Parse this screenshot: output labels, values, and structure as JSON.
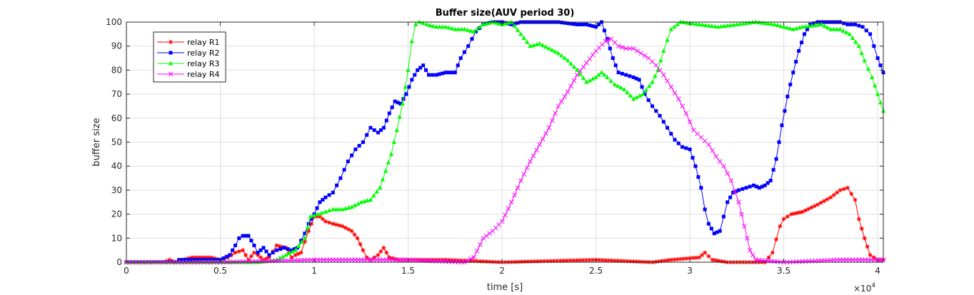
{
  "chart_data": {
    "type": "line",
    "title": "Buffer size(AUV period 30)",
    "xlabel": "time [s]",
    "ylabel": "buffer size",
    "x_exponent_label": "×10",
    "x_exponent_power": "4",
    "xlim": [
      0,
      40300
    ],
    "ylim": [
      0,
      100
    ],
    "xticks": [
      0,
      5000,
      10000,
      15000,
      20000,
      25000,
      30000,
      35000,
      40000
    ],
    "xtick_labels": [
      "0",
      "0.5",
      "1",
      "1.5",
      "2",
      "2.5",
      "3",
      "3.5",
      "4"
    ],
    "yticks": [
      0,
      10,
      20,
      30,
      40,
      50,
      60,
      70,
      80,
      90,
      100
    ],
    "ytick_labels": [
      "0",
      "10",
      "20",
      "30",
      "40",
      "50",
      "60",
      "70",
      "80",
      "90",
      "100"
    ],
    "grid": true,
    "legend_position": "top-left",
    "series": [
      {
        "name": "relay R1",
        "color": "#ff0000",
        "marker": "asterisk",
        "points": [
          [
            0,
            0
          ],
          [
            2000,
            0
          ],
          [
            2300,
            1
          ],
          [
            2600,
            0
          ],
          [
            3000,
            1
          ],
          [
            3500,
            2
          ],
          [
            4500,
            2
          ],
          [
            5000,
            1
          ],
          [
            5400,
            2
          ],
          [
            5800,
            4
          ],
          [
            6200,
            5
          ],
          [
            6500,
            1
          ],
          [
            6800,
            4
          ],
          [
            7000,
            3
          ],
          [
            7300,
            1
          ],
          [
            7600,
            2
          ],
          [
            8000,
            7
          ],
          [
            8500,
            6
          ],
          [
            8800,
            2
          ],
          [
            9000,
            3
          ],
          [
            9300,
            4
          ],
          [
            9700,
            13
          ],
          [
            10000,
            19
          ],
          [
            10300,
            19
          ],
          [
            10600,
            17
          ],
          [
            11000,
            16
          ],
          [
            11500,
            15
          ],
          [
            12000,
            13
          ],
          [
            12300,
            10
          ],
          [
            12600,
            5
          ],
          [
            12800,
            2
          ],
          [
            13000,
            1
          ],
          [
            13400,
            3
          ],
          [
            13700,
            6
          ],
          [
            14000,
            2
          ],
          [
            14500,
            1
          ],
          [
            15000,
            1
          ],
          [
            17000,
            1
          ],
          [
            20000,
            0
          ],
          [
            25000,
            1
          ],
          [
            28000,
            0
          ],
          [
            29000,
            1
          ],
          [
            30500,
            2
          ],
          [
            30800,
            4
          ],
          [
            31200,
            1
          ],
          [
            32000,
            0
          ],
          [
            34000,
            0
          ],
          [
            34400,
            4
          ],
          [
            34800,
            15
          ],
          [
            35000,
            18
          ],
          [
            35400,
            20
          ],
          [
            36000,
            21
          ],
          [
            36800,
            24
          ],
          [
            37500,
            27
          ],
          [
            38000,
            30
          ],
          [
            38400,
            31
          ],
          [
            38800,
            26
          ],
          [
            39000,
            18
          ],
          [
            39300,
            10
          ],
          [
            39600,
            3
          ],
          [
            40000,
            1
          ],
          [
            40300,
            1
          ]
        ]
      },
      {
        "name": "relay R2",
        "color": "#0000ff",
        "marker": "square",
        "points": [
          [
            0,
            0
          ],
          [
            2600,
            0
          ],
          [
            2800,
            1
          ],
          [
            4000,
            1
          ],
          [
            5000,
            1
          ],
          [
            5500,
            3
          ],
          [
            5800,
            7
          ],
          [
            6000,
            10
          ],
          [
            6200,
            11
          ],
          [
            6500,
            11
          ],
          [
            6800,
            7
          ],
          [
            7000,
            4
          ],
          [
            7300,
            6
          ],
          [
            7600,
            3
          ],
          [
            8000,
            5
          ],
          [
            8400,
            6
          ],
          [
            8800,
            5
          ],
          [
            9100,
            6
          ],
          [
            9500,
            12
          ],
          [
            9700,
            16
          ],
          [
            10000,
            20
          ],
          [
            10300,
            25
          ],
          [
            10600,
            27
          ],
          [
            11000,
            29
          ],
          [
            11400,
            35
          ],
          [
            11800,
            42
          ],
          [
            12200,
            47
          ],
          [
            12600,
            50
          ],
          [
            13000,
            56
          ],
          [
            13400,
            54
          ],
          [
            13700,
            56
          ],
          [
            14000,
            62
          ],
          [
            14300,
            67
          ],
          [
            14600,
            66
          ],
          [
            14900,
            70
          ],
          [
            15200,
            76
          ],
          [
            15500,
            80
          ],
          [
            15800,
            82
          ],
          [
            16100,
            78
          ],
          [
            16500,
            78
          ],
          [
            17000,
            79
          ],
          [
            17500,
            79
          ],
          [
            17800,
            85
          ],
          [
            18200,
            90
          ],
          [
            18600,
            96
          ],
          [
            19000,
            99
          ],
          [
            19500,
            100
          ],
          [
            20000,
            100
          ],
          [
            20500,
            99
          ],
          [
            21000,
            100
          ],
          [
            22000,
            100
          ],
          [
            23000,
            100
          ],
          [
            24000,
            99
          ],
          [
            24500,
            99
          ],
          [
            25000,
            98
          ],
          [
            25300,
            100
          ],
          [
            25600,
            93
          ],
          [
            25900,
            85
          ],
          [
            26200,
            79
          ],
          [
            26600,
            78
          ],
          [
            27000,
            77
          ],
          [
            27300,
            76
          ],
          [
            27600,
            70
          ],
          [
            28000,
            65
          ],
          [
            28400,
            61
          ],
          [
            28800,
            56
          ],
          [
            29200,
            51
          ],
          [
            29600,
            48
          ],
          [
            30000,
            47
          ],
          [
            30300,
            40
          ],
          [
            30600,
            31
          ],
          [
            30800,
            22
          ],
          [
            31000,
            16
          ],
          [
            31300,
            12
          ],
          [
            31600,
            13
          ],
          [
            32000,
            25
          ],
          [
            32300,
            29
          ],
          [
            32600,
            30
          ],
          [
            33000,
            31
          ],
          [
            33400,
            32
          ],
          [
            33700,
            31
          ],
          [
            34000,
            32
          ],
          [
            34300,
            34
          ],
          [
            34600,
            43
          ],
          [
            34900,
            57
          ],
          [
            35200,
            69
          ],
          [
            35500,
            79
          ],
          [
            35800,
            88
          ],
          [
            36100,
            95
          ],
          [
            36400,
            99
          ],
          [
            36800,
            100
          ],
          [
            37500,
            100
          ],
          [
            38000,
            100
          ],
          [
            38400,
            99
          ],
          [
            38800,
            99
          ],
          [
            39200,
            98
          ],
          [
            39600,
            95
          ],
          [
            40000,
            85
          ],
          [
            40300,
            79
          ]
        ]
      },
      {
        "name": "relay R3",
        "color": "#00ff00",
        "marker": "triangle",
        "points": [
          [
            0,
            0
          ],
          [
            3000,
            0
          ],
          [
            5000,
            0
          ],
          [
            6000,
            0
          ],
          [
            7000,
            0
          ],
          [
            8000,
            1
          ],
          [
            8500,
            3
          ],
          [
            9000,
            5
          ],
          [
            9500,
            10
          ],
          [
            9800,
            19
          ],
          [
            10200,
            20
          ],
          [
            10600,
            21
          ],
          [
            11000,
            22
          ],
          [
            11500,
            22
          ],
          [
            12000,
            23
          ],
          [
            12500,
            25
          ],
          [
            13000,
            26
          ],
          [
            13500,
            31
          ],
          [
            13800,
            38
          ],
          [
            14100,
            45
          ],
          [
            14400,
            55
          ],
          [
            14700,
            66
          ],
          [
            15000,
            80
          ],
          [
            15200,
            92
          ],
          [
            15400,
            99
          ],
          [
            15600,
            100
          ],
          [
            16000,
            99
          ],
          [
            16500,
            98
          ],
          [
            17000,
            98
          ],
          [
            17500,
            97
          ],
          [
            18000,
            97
          ],
          [
            18500,
            96
          ],
          [
            19000,
            99
          ],
          [
            19500,
            100
          ],
          [
            20000,
            99
          ],
          [
            20500,
            100
          ],
          [
            21000,
            95
          ],
          [
            21500,
            90
          ],
          [
            22000,
            91
          ],
          [
            22500,
            89
          ],
          [
            23000,
            87
          ],
          [
            23500,
            84
          ],
          [
            24000,
            80
          ],
          [
            24500,
            75
          ],
          [
            25000,
            77
          ],
          [
            25300,
            79
          ],
          [
            25600,
            77
          ],
          [
            26000,
            74
          ],
          [
            26500,
            72
          ],
          [
            27000,
            68
          ],
          [
            27500,
            70
          ],
          [
            28000,
            75
          ],
          [
            28300,
            80
          ],
          [
            28600,
            88
          ],
          [
            29000,
            97
          ],
          [
            29500,
            100
          ],
          [
            30500,
            99
          ],
          [
            31500,
            98
          ],
          [
            32500,
            99
          ],
          [
            33500,
            100
          ],
          [
            34500,
            99
          ],
          [
            35500,
            97
          ],
          [
            36000,
            98
          ],
          [
            37000,
            99
          ],
          [
            37500,
            97
          ],
          [
            38000,
            97
          ],
          [
            38500,
            95
          ],
          [
            39000,
            90
          ],
          [
            39300,
            84
          ],
          [
            39700,
            77
          ],
          [
            40000,
            70
          ],
          [
            40300,
            63
          ]
        ]
      },
      {
        "name": "relay R4",
        "color": "#ff00ff",
        "marker": "x",
        "points": [
          [
            0,
            0
          ],
          [
            5000,
            0
          ],
          [
            10000,
            1
          ],
          [
            12000,
            1
          ],
          [
            15000,
            1
          ],
          [
            18000,
            0
          ],
          [
            18500,
            2
          ],
          [
            19000,
            10
          ],
          [
            19500,
            13
          ],
          [
            20000,
            17
          ],
          [
            20500,
            25
          ],
          [
            21000,
            34
          ],
          [
            21500,
            42
          ],
          [
            22000,
            49
          ],
          [
            22500,
            56
          ],
          [
            23000,
            65
          ],
          [
            23500,
            71
          ],
          [
            24000,
            78
          ],
          [
            24500,
            83
          ],
          [
            25000,
            88
          ],
          [
            25500,
            92
          ],
          [
            25800,
            93
          ],
          [
            26200,
            90
          ],
          [
            26600,
            89
          ],
          [
            27000,
            89
          ],
          [
            27400,
            87
          ],
          [
            27800,
            85
          ],
          [
            28200,
            82
          ],
          [
            28600,
            78
          ],
          [
            29000,
            73
          ],
          [
            29400,
            68
          ],
          [
            29800,
            62
          ],
          [
            30200,
            55
          ],
          [
            30600,
            52
          ],
          [
            31000,
            49
          ],
          [
            31400,
            44
          ],
          [
            31800,
            40
          ],
          [
            32200,
            34
          ],
          [
            32600,
            25
          ],
          [
            32900,
            15
          ],
          [
            33200,
            5
          ],
          [
            33500,
            1
          ],
          [
            35000,
            0
          ],
          [
            38000,
            1
          ],
          [
            40000,
            1
          ],
          [
            40300,
            1
          ]
        ]
      }
    ]
  }
}
